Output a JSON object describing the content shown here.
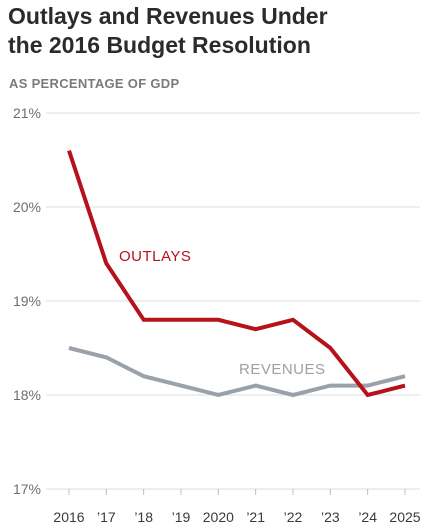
{
  "header": {
    "title_line1": "Outlays and Revenues Under",
    "title_line2": "the 2016 Budget Resolution",
    "subtitle": "AS PERCENTAGE OF GDP"
  },
  "colors": {
    "outlays": "#b5121b",
    "revenues": "#9aa1a8",
    "grid": "#dcdcdc"
  },
  "chart_data": {
    "type": "line",
    "title": "Outlays and Revenues Under the 2016 Budget Resolution",
    "subtitle": "AS PERCENTAGE OF GDP",
    "categories": [
      "2016",
      "’17",
      "’18",
      "’19",
      "2020",
      "’21",
      "’22",
      "’23",
      "’24",
      "2025"
    ],
    "series": [
      {
        "name": "OUTLAYS",
        "values": [
          20.6,
          19.4,
          18.8,
          18.8,
          18.8,
          18.7,
          18.8,
          18.5,
          18.0,
          18.1
        ]
      },
      {
        "name": "REVENUES",
        "values": [
          18.5,
          18.4,
          18.2,
          18.1,
          18.0,
          18.1,
          18.0,
          18.1,
          18.1,
          18.2
        ]
      }
    ],
    "ylim": [
      17,
      21
    ],
    "yticks": [
      "17%",
      "18%",
      "19%",
      "20%",
      "21%"
    ],
    "grid": true
  }
}
